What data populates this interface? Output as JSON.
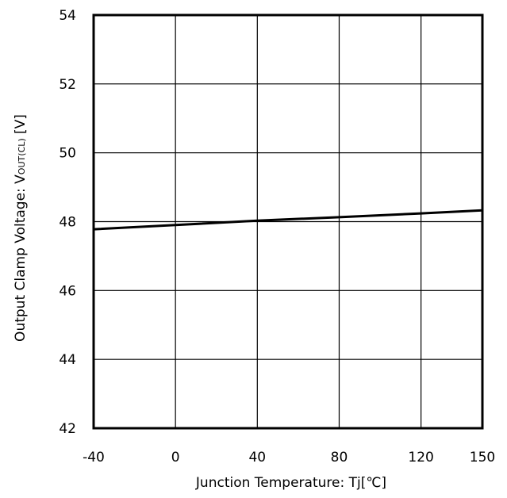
{
  "chart_data": {
    "type": "line",
    "xlabel": "Junction Temperature: Tj[℃]",
    "ylabel": {
      "prefix": "Output Clamp Voltage:  V",
      "subscript": "OUT(CL)",
      "suffix": " [V]"
    },
    "xlim": [
      -40,
      150
    ],
    "ylim": [
      42,
      54
    ],
    "x_ticks": [
      -40,
      0,
      40,
      80,
      120,
      150
    ],
    "x_tick_labels": [
      "-40",
      "0",
      "40",
      "80",
      "120",
      "150"
    ],
    "y_ticks": [
      42,
      44,
      46,
      48,
      50,
      52,
      54
    ],
    "y_tick_labels": [
      "42",
      "44",
      "46",
      "48",
      "50",
      "52",
      "54"
    ],
    "grid": true,
    "series": [
      {
        "x": [
          -40,
          0,
          40,
          80,
          120,
          150
        ],
        "y": [
          47.78,
          47.9,
          48.03,
          48.13,
          48.24,
          48.33
        ]
      }
    ]
  }
}
